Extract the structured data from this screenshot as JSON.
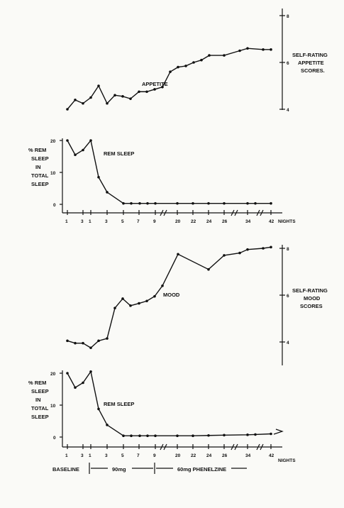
{
  "chart_data": [
    {
      "type": "line",
      "title": "",
      "ylabel": "SELF-RATING APPETITE SCORES",
      "ylabel_lines": [
        "SELF-RATING",
        "APPETITE",
        "SCORES."
      ],
      "yaxis_side": "right",
      "y_tick_labels": [
        "8",
        "6",
        "4"
      ],
      "annotation": "APPETITE",
      "series": [
        {
          "values": [
            4.0,
            4.4,
            4.25,
            4.5,
            5.0,
            4.25,
            4.6,
            4.55,
            4.45,
            4.75,
            4.75,
            4.85,
            4.95,
            5.6,
            5.8,
            5.85,
            6.0,
            6.1,
            6.3,
            6.3,
            6.5,
            6.6,
            6.55,
            6.55
          ]
        }
      ]
    },
    {
      "type": "line",
      "title": "",
      "ylabel": "% REM SLEEP IN TOTAL SLEEP",
      "ylabel_lines": [
        "% REM",
        "SLEEP",
        "IN",
        "TOTAL",
        "SLEEP"
      ],
      "y_tick_labels": [
        "20",
        "10",
        "0"
      ],
      "ylim": [
        0,
        22
      ],
      "annotation": "REM SLEEP",
      "x_tick_labels": [
        "1",
        "3",
        "1",
        "3",
        "5",
        "7",
        "9",
        "20",
        "22",
        "24",
        "26",
        "34",
        "42"
      ],
      "x_suffix": "NIGHTS",
      "series": [
        {
          "values": [
            20,
            15.5,
            17,
            20,
            8.5,
            3.8,
            0.3,
            0.3,
            0.3,
            0.3,
            0.3,
            0.3,
            0.3,
            0.3,
            0.3,
            0.3,
            0.3,
            0.3
          ]
        }
      ]
    },
    {
      "type": "line",
      "title": "",
      "ylabel": "SELF-RATING MOOD SCORES",
      "ylabel_lines": [
        "SELF-RATING",
        "MOOD",
        "SCORES"
      ],
      "yaxis_side": "right",
      "y_tick_labels": [
        "8",
        "6",
        "4"
      ],
      "annotation": "MOOD",
      "series": [
        {
          "values": [
            4.05,
            3.95,
            3.95,
            3.75,
            4.05,
            4.15,
            5.45,
            5.85,
            5.55,
            5.65,
            5.75,
            5.95,
            6.4,
            7.75,
            7.1,
            7.7,
            7.8,
            7.95,
            8.0,
            8.05
          ]
        }
      ]
    },
    {
      "type": "line",
      "title": "",
      "ylabel": "% REM SLEEP IN TOTAL SLEEP",
      "ylabel_lines": [
        "% REM",
        "SLEEP",
        "IN",
        "TOTAL",
        "SLEEP"
      ],
      "y_tick_labels": [
        "20",
        "10",
        "0"
      ],
      "ylim": [
        0,
        22
      ],
      "annotation": "REM SLEEP",
      "x_tick_labels": [
        "1",
        "3",
        "1",
        "3",
        "5",
        "7",
        "9",
        "20",
        "22",
        "24",
        "26",
        "34",
        "42"
      ],
      "x_suffix": "NIGHTS",
      "phases": [
        "BASELINE",
        "90mg",
        "60mg PHENELZINE"
      ],
      "series": [
        {
          "values": [
            20,
            15.5,
            17,
            20.5,
            8.8,
            3.8,
            0.4,
            0.4,
            0.4,
            0.4,
            0.4,
            0.4,
            0.4,
            0.5,
            0.6,
            0.7,
            0.8,
            1.0
          ]
        }
      ]
    }
  ]
}
